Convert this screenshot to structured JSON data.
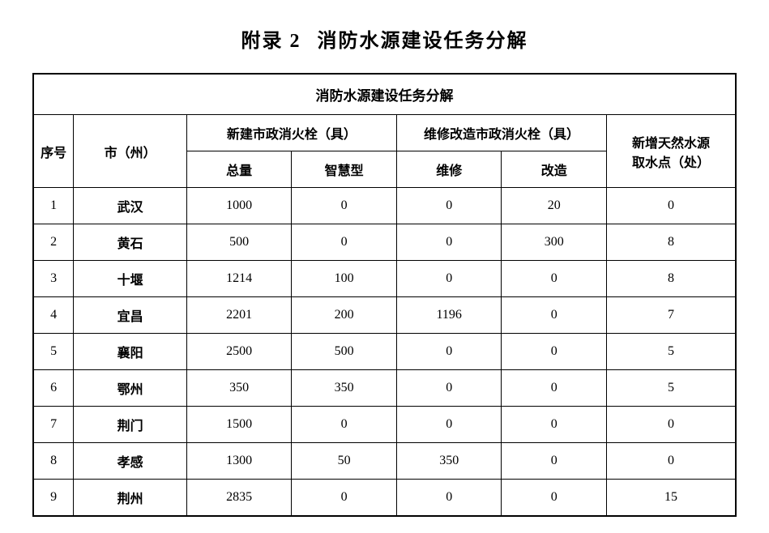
{
  "title": {
    "prefix": "附录 2",
    "main": "消防水源建设任务分解"
  },
  "table": {
    "caption": "消防水源建设任务分解",
    "headers": {
      "seq": "序号",
      "city": "市（州）",
      "new_group": "新建市政消火栓（具）",
      "new_total": "总量",
      "new_smart": "智慧型",
      "repair_group": "维修改造市政消火栓（具）",
      "repair": "维修",
      "reform": "改造",
      "natural_water": "新增天然水源\n取水点（处）"
    },
    "rows": [
      {
        "seq": "1",
        "city": "武汉",
        "total": "1000",
        "smart": "0",
        "repair": "0",
        "reform": "20",
        "water": "0"
      },
      {
        "seq": "2",
        "city": "黄石",
        "total": "500",
        "smart": "0",
        "repair": "0",
        "reform": "300",
        "water": "8"
      },
      {
        "seq": "3",
        "city": "十堰",
        "total": "1214",
        "smart": "100",
        "repair": "0",
        "reform": "0",
        "water": "8"
      },
      {
        "seq": "4",
        "city": "宜昌",
        "total": "2201",
        "smart": "200",
        "repair": "1196",
        "reform": "0",
        "water": "7"
      },
      {
        "seq": "5",
        "city": "襄阳",
        "total": "2500",
        "smart": "500",
        "repair": "0",
        "reform": "0",
        "water": "5"
      },
      {
        "seq": "6",
        "city": "鄂州",
        "total": "350",
        "smart": "350",
        "repair": "0",
        "reform": "0",
        "water": "5"
      },
      {
        "seq": "7",
        "city": "荆门",
        "total": "1500",
        "smart": "0",
        "repair": "0",
        "reform": "0",
        "water": "0"
      },
      {
        "seq": "8",
        "city": "孝感",
        "total": "1300",
        "smart": "50",
        "repair": "350",
        "reform": "0",
        "water": "0"
      },
      {
        "seq": "9",
        "city": "荆州",
        "total": "2835",
        "smart": "0",
        "repair": "0",
        "reform": "0",
        "water": "15"
      }
    ]
  },
  "style": {
    "page_bg": "#ffffff",
    "text_color": "#000000",
    "border_color": "#000000",
    "title_fontsize": 24,
    "cell_fontsize": 16,
    "header_fontsize": 17,
    "font_family": "SimSun"
  }
}
